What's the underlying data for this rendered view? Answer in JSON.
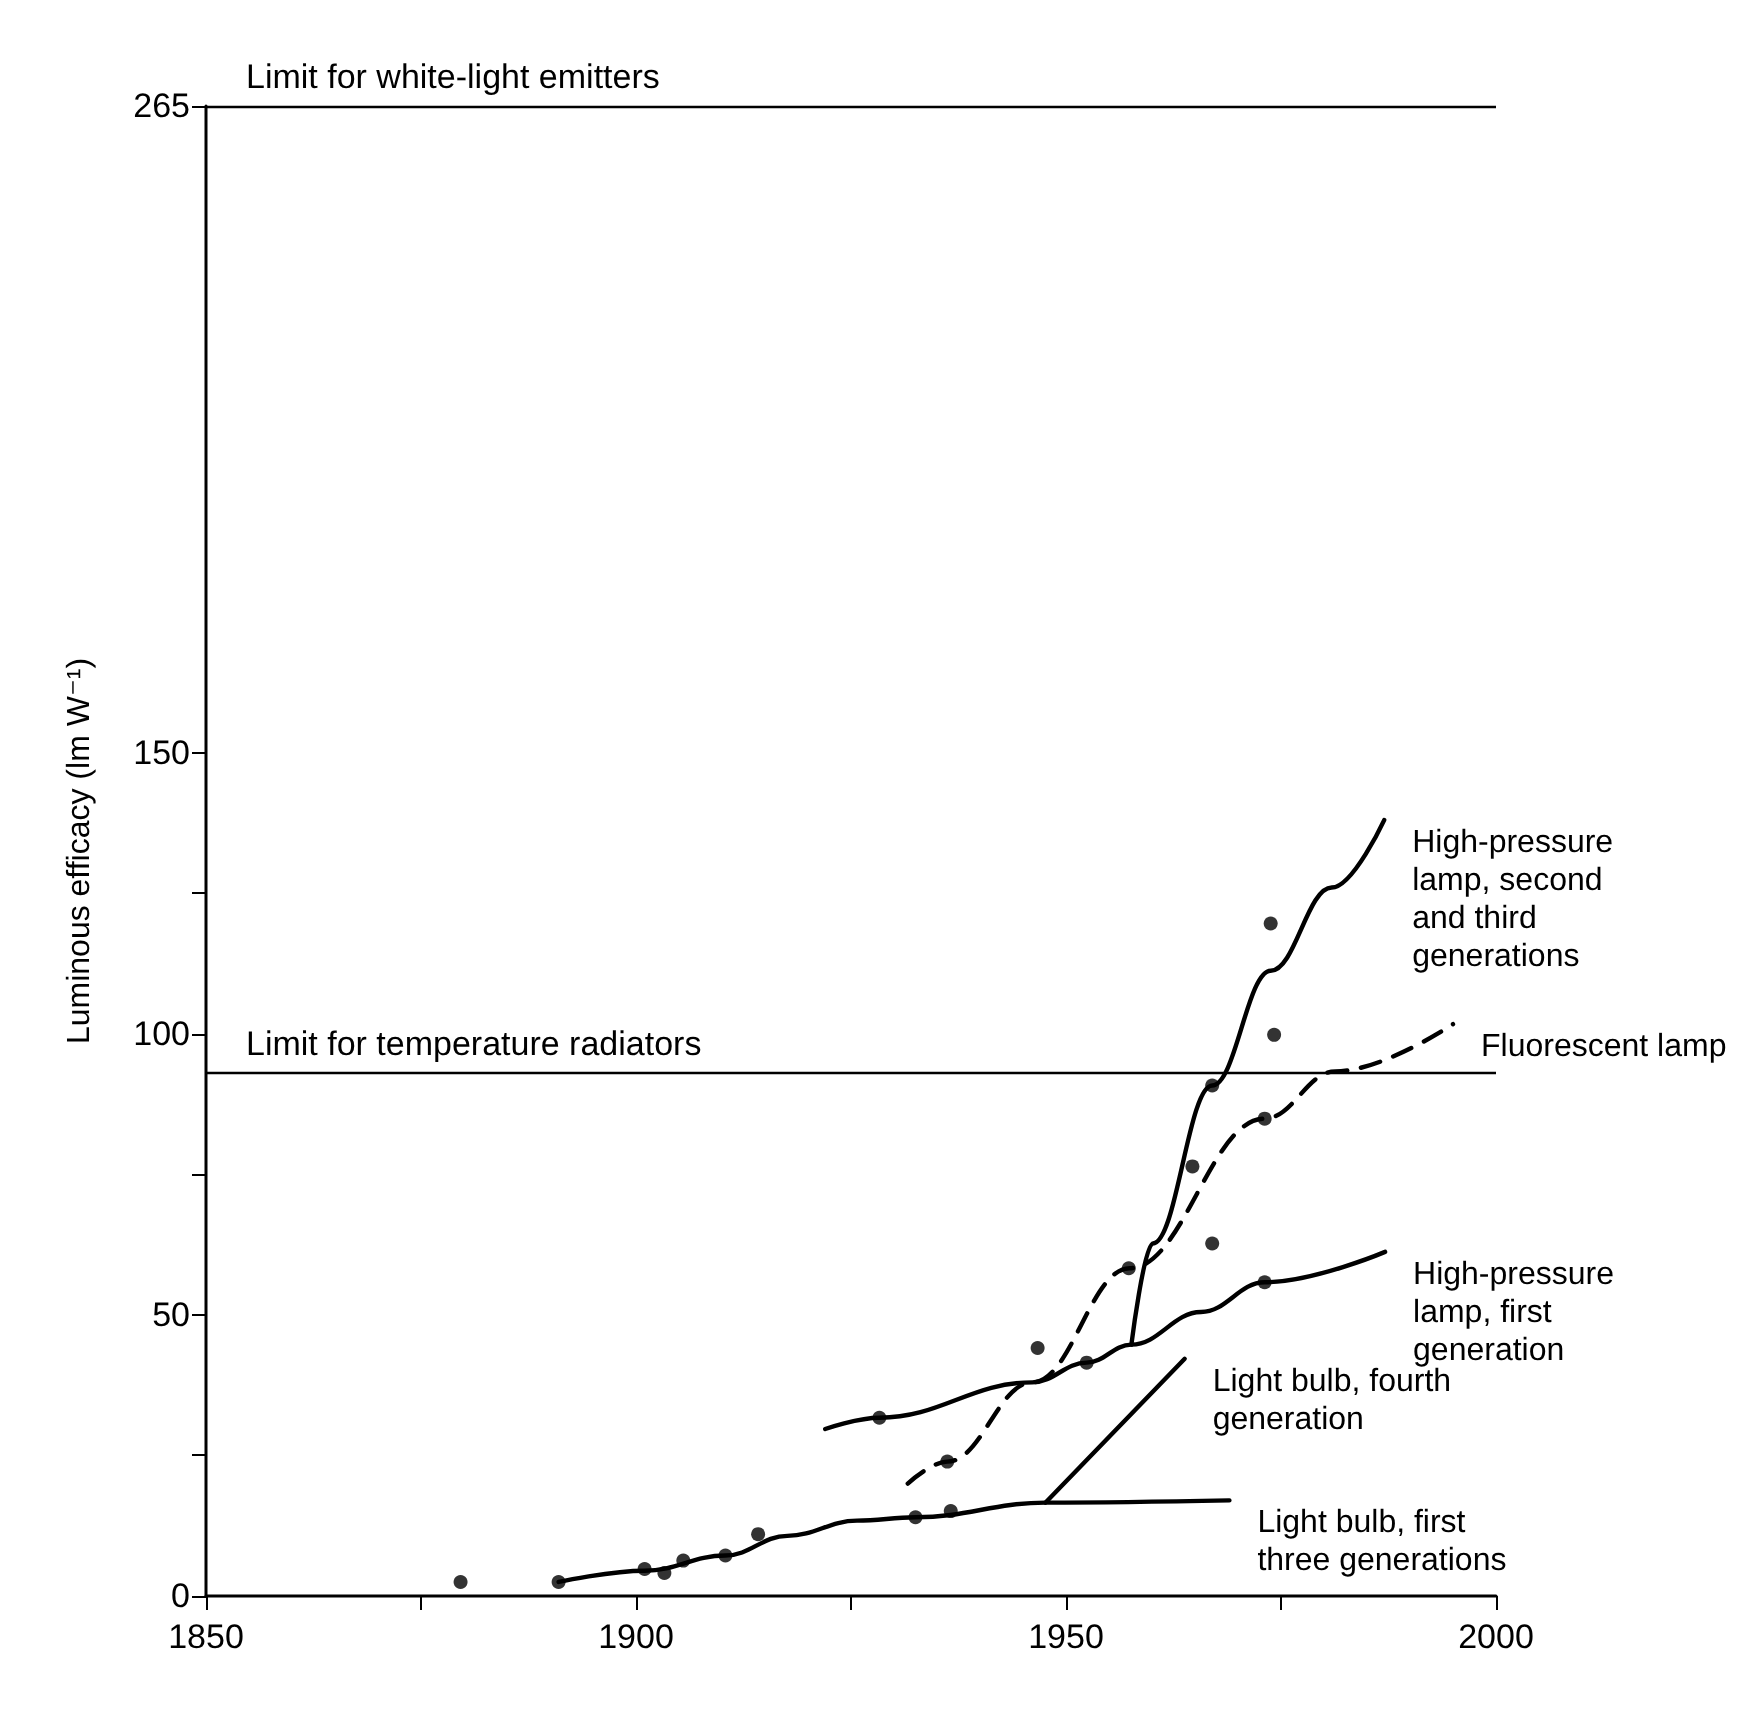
{
  "chart_data": {
    "type": "line",
    "ylabel": "Luminous efficacy (lm W⁻¹)",
    "xlim": [
      1850,
      2000
    ],
    "xticks": [
      1850,
      {
        "value": 1875,
        "label": null
      },
      1900,
      {
        "value": 1925,
        "label": null
      },
      1950,
      {
        "value": 1975,
        "label": null
      },
      2000
    ],
    "ylim": [
      0,
      265
    ],
    "yticks": [
      0,
      {
        "value": 25,
        "label": null
      },
      50,
      {
        "value": 75,
        "label": null
      },
      100,
      {
        "value": 125,
        "label": null
      },
      150,
      265
    ],
    "grid": false,
    "legend": false,
    "marker": "none",
    "ref_lines": [
      {
        "axis": "y",
        "value": 265,
        "label": "Limit for white-light emitters",
        "color": "#000000"
      },
      {
        "axis": "y",
        "value": 93,
        "label": "Limit for temperature radiators",
        "color": "#000000"
      }
    ],
    "series": [
      {
        "name": "High-pressure lamp, second and third generations",
        "color": "#000000",
        "line_style": "solid",
        "x": [
          1957.6,
          1960.1,
          1967,
          1973.8,
          1980.9,
          1987
        ],
        "values": [
          44.7,
          62.7,
          90.8,
          111.2,
          126,
          138
        ]
      },
      {
        "name": "Fluorescent lamp",
        "color": "#000000",
        "line_style": "dashed",
        "x": [
          1931.6,
          1936.2,
          1946.1,
          1957.4,
          1973.1,
          1981.3,
          1995
        ],
        "values": [
          20,
          23.9,
          38,
          58.3,
          84.9,
          93.3,
          101.7
        ]
      },
      {
        "name": "High-pressure lamp, first generation",
        "color": "#000000",
        "line_style": "solid",
        "x": [
          1922,
          1928.3,
          1946.1,
          1952.4,
          1957.6,
          1965.7,
          1973.1,
          1987.1
        ],
        "values": [
          29.7,
          31.7,
          38,
          41.5,
          44.7,
          50.5,
          55.8,
          61.2
        ]
      },
      {
        "name": "Light bulb, fourth generation",
        "color": "#000000",
        "line_style": "solid",
        "x": [
          1947.6,
          1963.8
        ],
        "values": [
          16.6,
          42.2
        ]
      },
      {
        "name": "Light bulb, first three generations",
        "color": "#000000",
        "line_style": "solid",
        "x": [
          1891,
          1901,
          1910.4,
          1917.6,
          1925.7,
          1932.5,
          1947.6,
          1969
        ],
        "values": [
          2.5,
          4.5,
          7.2,
          10.7,
          13.4,
          14,
          16.6,
          17
        ]
      },
      {
        "type": "scatter",
        "marker": "circle",
        "color": "#000000",
        "x": [
          1879.6,
          1891,
          1901,
          1903.3,
          1905.5,
          1910.4,
          1914.2,
          1928.3,
          1932.5,
          1936.6,
          1936.2,
          1946.7,
          1952.4,
          1957.3,
          1964.7,
          1967,
          1967,
          1973.1,
          1973.1,
          1973.8,
          1974.2
        ],
        "values": [
          2.5,
          2.5,
          4.8,
          4.1,
          6.3,
          7.2,
          11,
          31.7,
          14,
          15.1,
          23.9,
          44.1,
          41.5,
          58.3,
          76.4,
          62.7,
          90.8,
          84.9,
          55.8,
          119.6,
          99.8
        ]
      }
    ]
  }
}
